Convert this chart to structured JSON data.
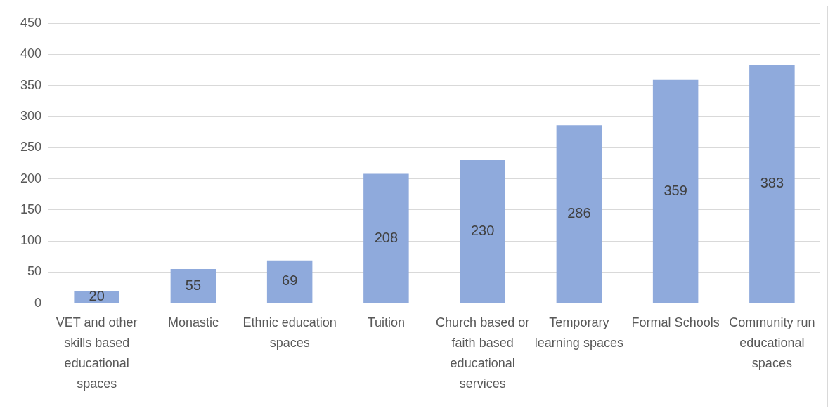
{
  "chart_data": {
    "type": "bar",
    "categories": [
      "VET and other skills based educational spaces",
      "Monastic",
      "Ethnic education spaces",
      "Tuition",
      "Church based or faith based educational services",
      "Temporary learning spaces",
      "Formal Schools",
      "Community run educational spaces"
    ],
    "values": [
      20,
      55,
      69,
      208,
      230,
      286,
      359,
      383
    ],
    "color": "#8faadc",
    "ylim": [
      0,
      450
    ],
    "yticks": [
      0,
      50,
      100,
      150,
      200,
      250,
      300,
      350,
      400,
      450
    ],
    "grid": "y",
    "legend": false,
    "data_labels": true
  }
}
